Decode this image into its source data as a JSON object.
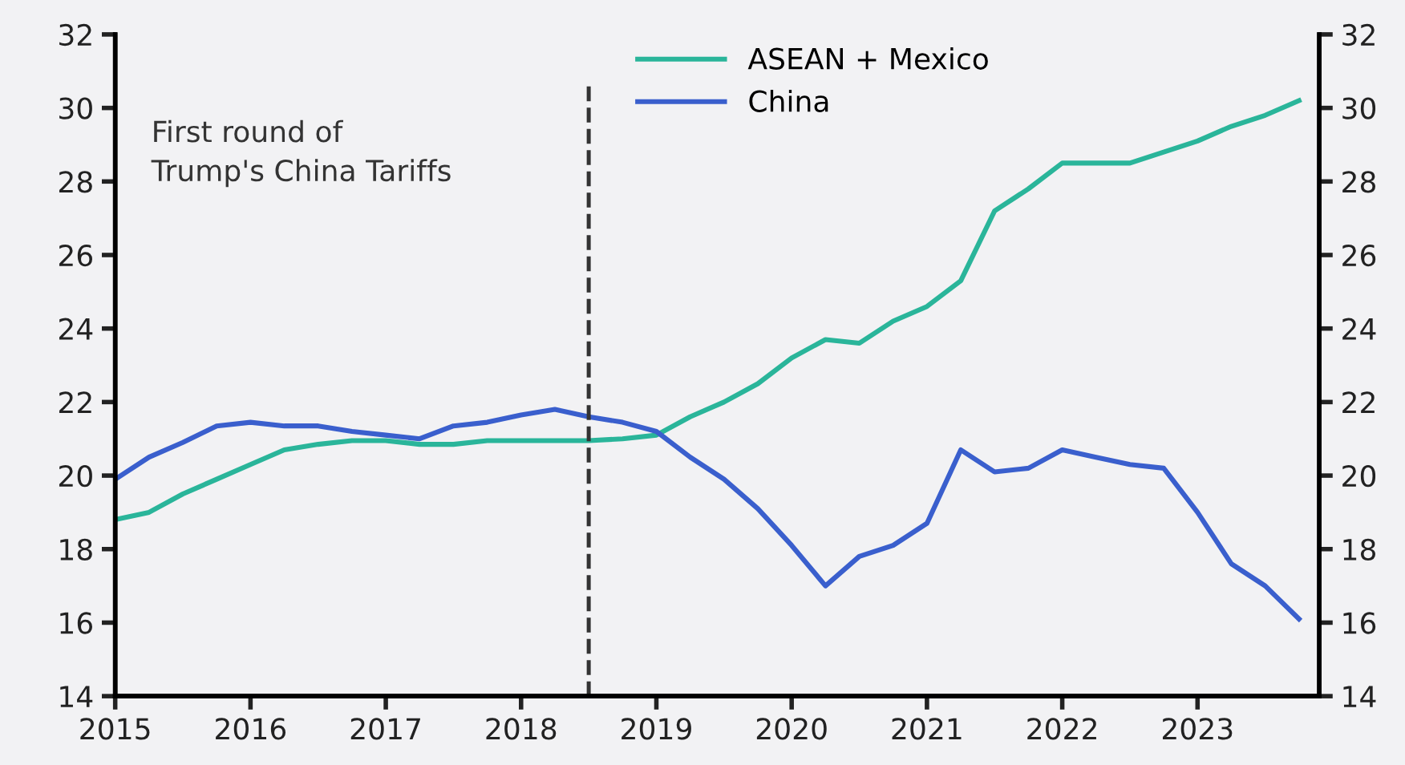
{
  "chart_data": {
    "type": "line",
    "x": [
      2015,
      2015.25,
      2015.5,
      2015.75,
      2016,
      2016.25,
      2016.5,
      2016.75,
      2017,
      2017.25,
      2017.5,
      2017.75,
      2018,
      2018.25,
      2018.5,
      2018.75,
      2019,
      2019.25,
      2019.5,
      2019.75,
      2020,
      2020.25,
      2020.5,
      2020.75,
      2021,
      2021.25,
      2021.5,
      2021.75,
      2022,
      2022.25,
      2022.5,
      2022.75,
      2023,
      2023.25,
      2023.5,
      2023.75
    ],
    "series": [
      {
        "name": "ASEAN + Mexico",
        "color": "#2ab59a",
        "values": [
          18.8,
          19.0,
          19.5,
          19.9,
          20.3,
          20.7,
          20.85,
          20.95,
          20.95,
          20.85,
          20.85,
          20.95,
          20.95,
          20.95,
          20.95,
          21.0,
          21.1,
          21.6,
          22.0,
          22.5,
          23.2,
          23.7,
          23.6,
          24.2,
          24.6,
          25.3,
          27.2,
          27.8,
          28.5,
          28.5,
          28.5,
          28.8,
          29.1,
          29.5,
          29.8,
          30.2
        ]
      },
      {
        "name": "China",
        "color": "#3a5fcd",
        "values": [
          19.9,
          20.5,
          20.9,
          21.35,
          21.45,
          21.35,
          21.35,
          21.2,
          21.1,
          21.0,
          21.35,
          21.45,
          21.65,
          21.8,
          21.6,
          21.45,
          21.2,
          20.5,
          19.9,
          19.1,
          18.1,
          17.0,
          17.8,
          18.1,
          18.7,
          20.7,
          20.1,
          20.2,
          20.7,
          20.5,
          20.3,
          20.2,
          19.0,
          17.6,
          17.0,
          16.1
        ]
      }
    ],
    "xlim": [
      2015,
      2023.9
    ],
    "xticks": [
      2015,
      2016,
      2017,
      2018,
      2019,
      2020,
      2021,
      2022,
      2023
    ],
    "ylim": [
      14,
      32
    ],
    "yticks": [
      14,
      16,
      18,
      20,
      22,
      24,
      26,
      28,
      30,
      32
    ],
    "y2lim": [
      14,
      32
    ],
    "y2ticks": [
      14,
      16,
      18,
      20,
      22,
      24,
      26,
      28,
      30,
      32
    ],
    "ref_lines": [
      {
        "axis": "x",
        "value": 2018.5,
        "color": "#333333",
        "line_style": "dashed"
      }
    ],
    "annotations": [
      "First round of\nTrump's China Tariffs"
    ],
    "legend": "top",
    "grid": false,
    "marker": "none",
    "line_style": "solid"
  }
}
